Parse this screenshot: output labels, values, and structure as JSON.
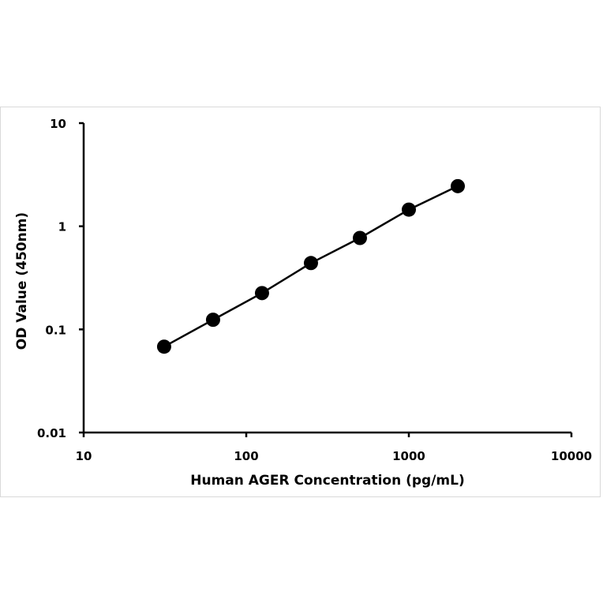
{
  "chart_data": {
    "type": "scatter",
    "title": "",
    "xlabel": "Human AGER Concentration (pg/mL)",
    "ylabel": "OD Value (450nm)",
    "xscale": "log",
    "yscale": "log",
    "xlim": [
      10,
      10000
    ],
    "ylim": [
      0.01,
      10
    ],
    "xticks": [
      "10",
      "100",
      "1000",
      "10000"
    ],
    "yticks": [
      "0.01",
      "0.1",
      "1",
      "10"
    ],
    "grid": false,
    "legend": "none",
    "series": [
      {
        "x": [
          31.25,
          62.5,
          125,
          250,
          500,
          1000,
          2000
        ],
        "y": [
          0.068,
          0.124,
          0.225,
          0.44,
          0.77,
          1.45,
          2.45
        ],
        "marker": "circle",
        "line": "straight",
        "color": "#000000"
      }
    ]
  }
}
